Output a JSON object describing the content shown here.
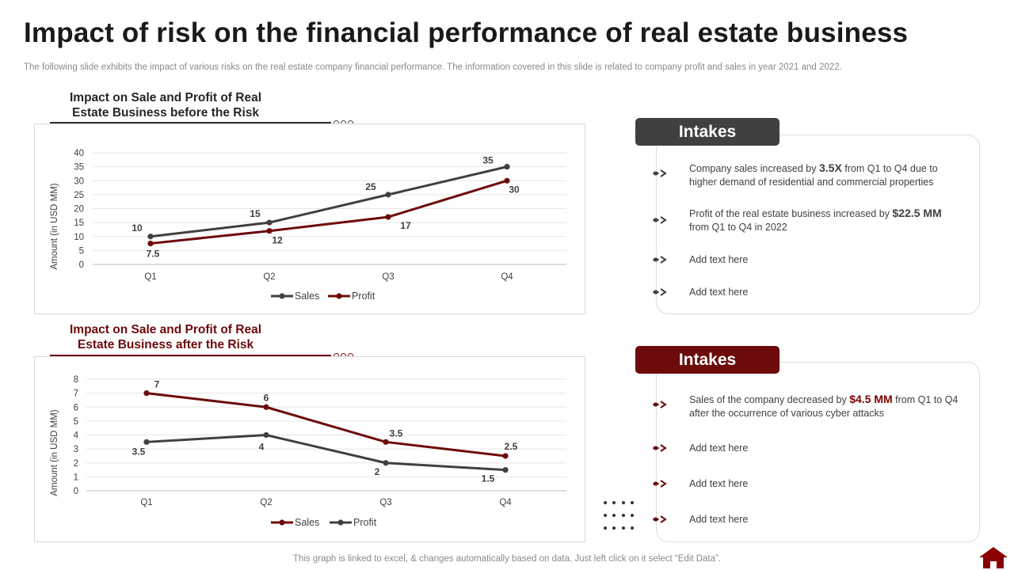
{
  "title": "Impact of risk on the financial performance of real estate business",
  "subtitle": "The following slide exhibits the impact of various risks on the real estate company financial performance. The information covered in this slide is related to company profit and sales in year 2021 and 2022.",
  "footer": "This graph is linked to excel, & changes automatically based on data. Just left click on it select “Edit Data”.",
  "colors": {
    "dark": "#404040",
    "maroon": "#6d0a0a",
    "accent_red": "#7a0000"
  },
  "chart_data": [
    {
      "type": "line",
      "title_line1": "Impact on Sale and Profit of Real",
      "title_line2": "Estate Business before the Risk",
      "xlabel": "",
      "ylabel": "Amount (in USD MM)",
      "categories": [
        "Q1",
        "Q2",
        "Q3",
        "Q4"
      ],
      "ylim": [
        0,
        40
      ],
      "yticks": [
        "0",
        "5",
        "10",
        "15",
        "20",
        "25",
        "30",
        "35",
        "40"
      ],
      "series": [
        {
          "name": "Sales",
          "color": "#404040",
          "values": [
            10,
            15,
            25,
            35
          ],
          "labels": [
            "10",
            "15",
            "25",
            "35"
          ]
        },
        {
          "name": "Profit",
          "color": "#6d0a0a",
          "values": [
            7.5,
            12,
            17,
            30
          ],
          "labels": [
            "7.5",
            "12",
            "17",
            "30"
          ]
        }
      ],
      "legend_position": "bottom",
      "grid": true
    },
    {
      "type": "line",
      "title_line1": "Impact on Sale and Profit of Real",
      "title_line2": "Estate Business after the Risk",
      "xlabel": "",
      "ylabel": "Amount (in USD MM)",
      "categories": [
        "Q1",
        "Q2",
        "Q3",
        "Q4"
      ],
      "ylim": [
        0,
        8
      ],
      "yticks": [
        "0",
        "1",
        "2",
        "3",
        "4",
        "5",
        "6",
        "7",
        "8"
      ],
      "series": [
        {
          "name": "Sales",
          "color": "#6d0a0a",
          "values": [
            7,
            6,
            3.5,
            2.5
          ],
          "labels": [
            "7",
            "6",
            "3.5",
            "2.5"
          ]
        },
        {
          "name": "Profit",
          "color": "#404040",
          "values": [
            3.5,
            4,
            2,
            1.5
          ],
          "labels": [
            "3.5",
            "4",
            "2",
            "1.5"
          ]
        }
      ],
      "legend_position": "bottom",
      "grid": true
    }
  ],
  "intakes": [
    {
      "heading": "Intakes",
      "items": [
        {
          "pre": "Company sales increased by ",
          "highlight": "3.5X",
          "post": " from Q1 to Q4 due to higher demand of residential and commercial properties"
        },
        {
          "pre": "Profit of the real estate business increased by ",
          "highlight": "$22.5 MM",
          "post": " from Q1 to Q4 in 2022"
        },
        {
          "pre": "Add text here",
          "highlight": "",
          "post": ""
        },
        {
          "pre": "Add text here",
          "highlight": "",
          "post": ""
        }
      ]
    },
    {
      "heading": "Intakes",
      "items": [
        {
          "pre": "Sales of the company decreased by ",
          "highlight": "$4.5 MM",
          "post": " from Q1 to Q4 after the occurrence of various  cyber attacks"
        },
        {
          "pre": "Add text here",
          "highlight": "",
          "post": ""
        },
        {
          "pre": "Add text here",
          "highlight": "",
          "post": ""
        },
        {
          "pre": "Add text here",
          "highlight": "",
          "post": ""
        }
      ]
    }
  ]
}
